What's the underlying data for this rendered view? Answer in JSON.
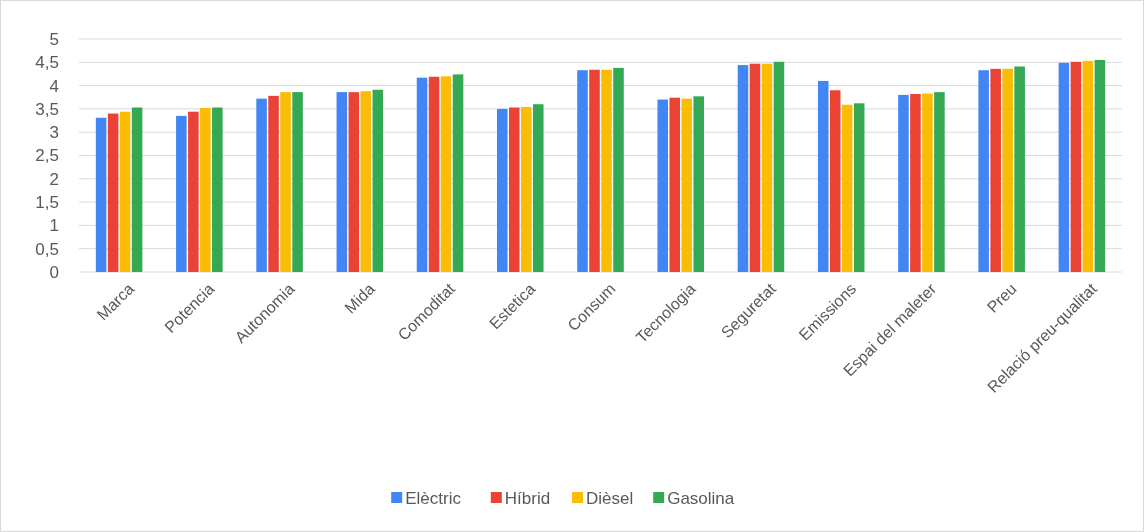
{
  "chart_data": {
    "type": "bar",
    "categories": [
      "Marca",
      "Potencia",
      "Autonomia",
      "Mida",
      "Comoditat",
      "Estetica",
      "Consum",
      "Tecnologia",
      "Seguretat",
      "Emissions",
      "Espai del maleter",
      "Preu",
      "Relació preu-qualitat"
    ],
    "series": [
      {
        "name": "Elèctric",
        "color": "#4285f4",
        "values": [
          3.31,
          3.35,
          3.72,
          3.86,
          4.17,
          3.5,
          4.33,
          3.7,
          4.44,
          4.1,
          3.8,
          4.33,
          4.49
        ]
      },
      {
        "name": "Híbrid",
        "color": "#ea4335",
        "values": [
          3.4,
          3.44,
          3.78,
          3.86,
          4.19,
          3.53,
          4.34,
          3.74,
          4.47,
          3.9,
          3.82,
          4.36,
          4.51
        ]
      },
      {
        "name": "Dièsel",
        "color": "#fbbc04",
        "values": [
          3.44,
          3.52,
          3.86,
          3.88,
          4.2,
          3.54,
          4.34,
          3.72,
          4.47,
          3.59,
          3.83,
          4.36,
          4.53
        ]
      },
      {
        "name": "Gasolina",
        "color": "#34a853",
        "values": [
          3.53,
          3.53,
          3.86,
          3.91,
          4.24,
          3.6,
          4.38,
          3.77,
          4.51,
          3.62,
          3.86,
          4.41,
          4.55
        ]
      }
    ],
    "ylim": [
      0,
      5
    ],
    "yticks": [
      0,
      {
        "value": 0.5,
        "label": "0,5"
      },
      1,
      {
        "value": 1.5,
        "label": "1,5"
      },
      2,
      {
        "value": 2.5,
        "label": "2,5"
      },
      3,
      {
        "value": 3.5,
        "label": "3,5"
      },
      4,
      {
        "value": 4.5,
        "label": "4,5"
      },
      5
    ],
    "grid": "y",
    "legend": "bottom"
  }
}
